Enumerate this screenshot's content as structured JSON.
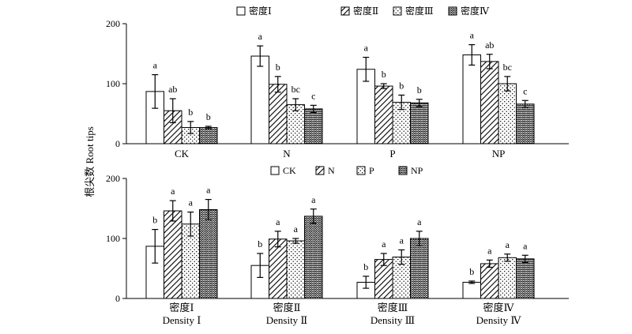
{
  "ylabel": "根尖数 Root tips",
  "chart_data": [
    {
      "type": "bar",
      "title": "",
      "xlabel": "",
      "ylabel": "根尖数 Root tips",
      "ylim": [
        0,
        200
      ],
      "yticks": [
        "0",
        "100",
        "200"
      ],
      "grid": false,
      "legend_position": "top",
      "categories": [
        "CK",
        "N",
        "P",
        "NP"
      ],
      "series": [
        {
          "name": "密度Ⅰ",
          "pattern": "blank",
          "values": [
            87,
            146,
            124,
            148
          ],
          "errors": [
            28,
            17,
            20,
            17
          ],
          "letters": [
            "a",
            "a",
            "a",
            "a"
          ]
        },
        {
          "name": "密度Ⅱ",
          "pattern": "hatch",
          "values": [
            55,
            99,
            96,
            137
          ],
          "errors": [
            20,
            13,
            4,
            12
          ],
          "letters": [
            "ab",
            "b",
            "b",
            "ab"
          ]
        },
        {
          "name": "密度Ⅲ",
          "pattern": "dots",
          "values": [
            27,
            65,
            69,
            100
          ],
          "errors": [
            10,
            10,
            12,
            12
          ],
          "letters": [
            "b",
            "bc",
            "b",
            "bc"
          ]
        },
        {
          "name": "密度Ⅳ",
          "pattern": "wave",
          "values": [
            27,
            58,
            68,
            66
          ],
          "errors": [
            2,
            6,
            6,
            6
          ],
          "letters": [
            "b",
            "c",
            "b",
            "c"
          ]
        }
      ]
    },
    {
      "type": "bar",
      "title": "",
      "xlabel": "",
      "ylabel": "根尖数 Root tips",
      "ylim": [
        0,
        200
      ],
      "yticks": [
        "0",
        "100",
        "200"
      ],
      "grid": false,
      "legend_position": "top",
      "categories": [
        "密度Ⅰ",
        "密度Ⅱ",
        "密度Ⅲ",
        "密度Ⅳ"
      ],
      "categories_en": [
        "Density Ⅰ",
        "Density Ⅱ",
        "Density Ⅲ",
        "Density Ⅳ"
      ],
      "series": [
        {
          "name": "CK",
          "pattern": "blank",
          "values": [
            87,
            55,
            27,
            27
          ],
          "errors": [
            28,
            20,
            10,
            2
          ],
          "letters": [
            "b",
            "b",
            "b",
            "b"
          ]
        },
        {
          "name": "N",
          "pattern": "hatch",
          "values": [
            146,
            99,
            65,
            58
          ],
          "errors": [
            17,
            13,
            10,
            6
          ],
          "letters": [
            "a",
            "a",
            "a",
            "a"
          ]
        },
        {
          "name": "P",
          "pattern": "dots",
          "values": [
            124,
            96,
            69,
            68
          ],
          "errors": [
            20,
            4,
            12,
            6
          ],
          "letters": [
            "a",
            "a",
            "a",
            "a"
          ]
        },
        {
          "name": "NP",
          "pattern": "wave",
          "values": [
            148,
            137,
            100,
            66
          ],
          "errors": [
            17,
            12,
            12,
            6
          ],
          "letters": [
            "a",
            "a",
            "a",
            "a"
          ]
        }
      ]
    }
  ]
}
